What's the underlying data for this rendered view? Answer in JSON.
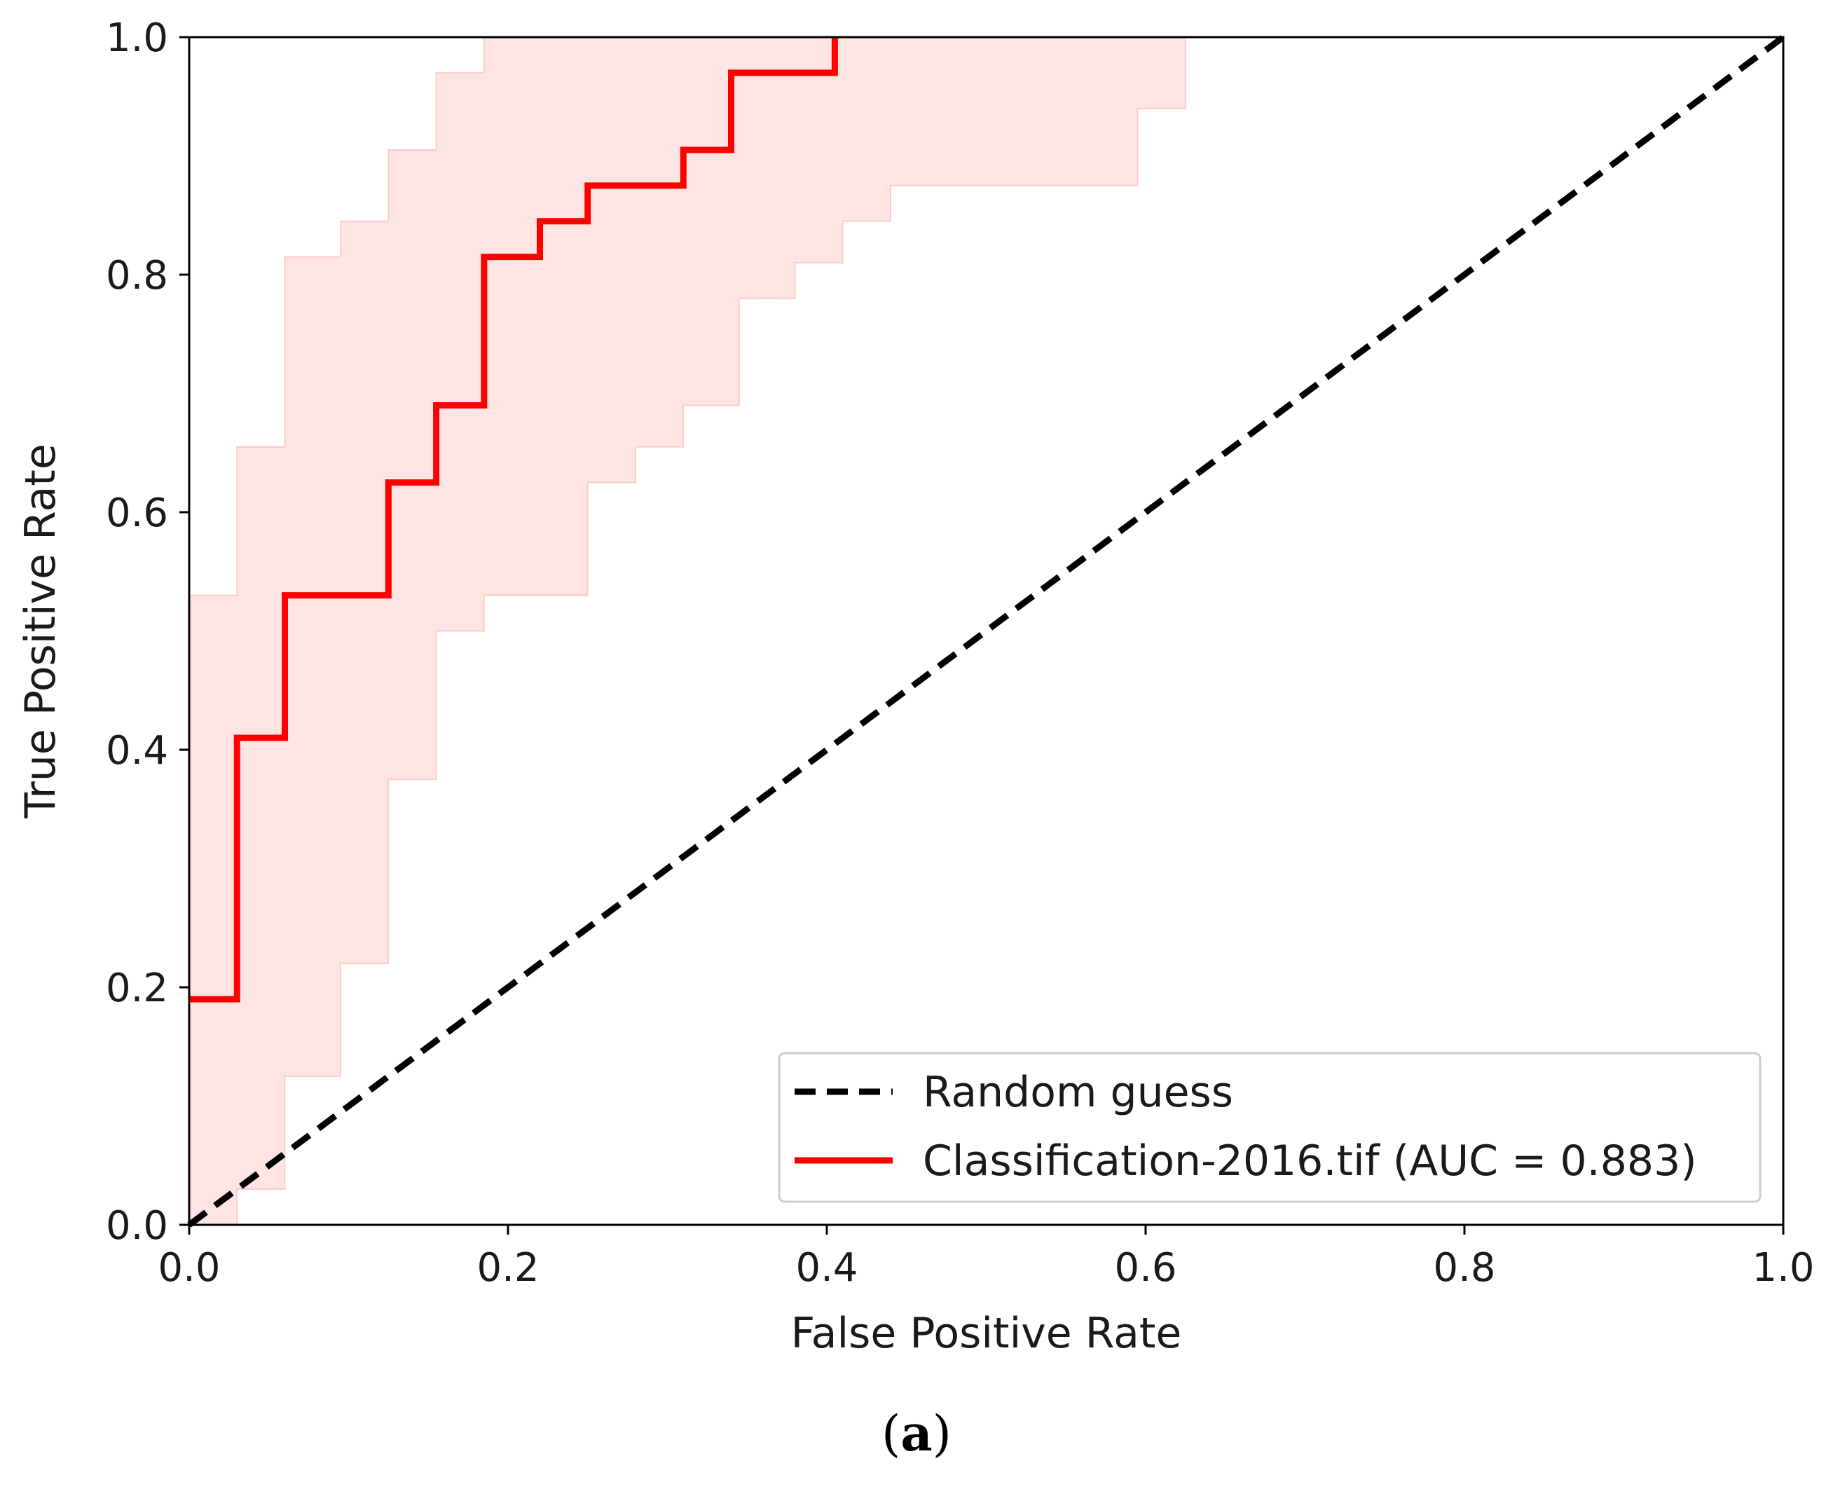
{
  "chart_data": {
    "type": "line",
    "title": "",
    "xlabel": "False Positive Rate",
    "ylabel": "True Positive Rate",
    "xlim": [
      0.0,
      1.0
    ],
    "ylim": [
      0.0,
      1.0
    ],
    "xticks": [
      "0.0",
      "0.2",
      "0.4",
      "0.6",
      "0.8",
      "1.0"
    ],
    "yticks": [
      "0.0",
      "0.2",
      "0.4",
      "0.6",
      "0.8",
      "1.0"
    ],
    "grid": false,
    "legend_position": "lower-right",
    "series": [
      {
        "name": "Random guess",
        "style": "dashed",
        "color": "#000000",
        "x": [
          0.0,
          1.0
        ],
        "y": [
          0.0,
          1.0
        ]
      },
      {
        "name": "Classification-2016.tif (AUC = 0.883)",
        "style": "solid",
        "color": "#ff0000",
        "x": [
          0.0,
          0.03,
          0.03,
          0.06,
          0.06,
          0.125,
          0.125,
          0.155,
          0.155,
          0.185,
          0.185,
          0.22,
          0.22,
          0.25,
          0.25,
          0.31,
          0.31,
          0.34,
          0.34,
          0.405,
          0.405
        ],
        "y": [
          0.19,
          0.19,
          0.41,
          0.41,
          0.53,
          0.53,
          0.625,
          0.625,
          0.69,
          0.69,
          0.815,
          0.815,
          0.845,
          0.845,
          0.875,
          0.875,
          0.905,
          0.905,
          0.97,
          0.97,
          1.0
        ]
      }
    ],
    "confidence_band": {
      "color": "#ffb3b3",
      "upper": {
        "x": [
          0.0,
          0.03,
          0.03,
          0.06,
          0.06,
          0.095,
          0.095,
          0.125,
          0.125,
          0.155,
          0.155,
          0.185,
          0.185,
          0.63
        ],
        "y": [
          0.53,
          0.53,
          0.655,
          0.655,
          0.815,
          0.815,
          0.845,
          0.845,
          0.905,
          0.905,
          0.97,
          0.97,
          1.0,
          1.0
        ]
      },
      "lower": {
        "x": [
          0.0,
          0.03,
          0.03,
          0.06,
          0.06,
          0.095,
          0.095,
          0.125,
          0.125,
          0.155,
          0.155,
          0.185,
          0.185,
          0.25,
          0.25,
          0.28,
          0.28,
          0.31,
          0.31,
          0.345,
          0.345,
          0.38,
          0.38,
          0.41,
          0.41,
          0.44,
          0.44,
          0.595,
          0.595,
          0.625,
          0.625
        ],
        "y": [
          0.0,
          0.0,
          0.03,
          0.03,
          0.125,
          0.125,
          0.22,
          0.22,
          0.375,
          0.375,
          0.5,
          0.5,
          0.53,
          0.53,
          0.625,
          0.625,
          0.655,
          0.655,
          0.69,
          0.69,
          0.78,
          0.78,
          0.81,
          0.81,
          0.845,
          0.845,
          0.875,
          0.875,
          0.94,
          0.94,
          1.0
        ]
      }
    },
    "legend": {
      "entries": [
        "Random guess",
        "Classification-2016.tif (AUC = 0.883)"
      ]
    }
  },
  "caption": {
    "open": "(",
    "letter": "a",
    "close": ")"
  }
}
